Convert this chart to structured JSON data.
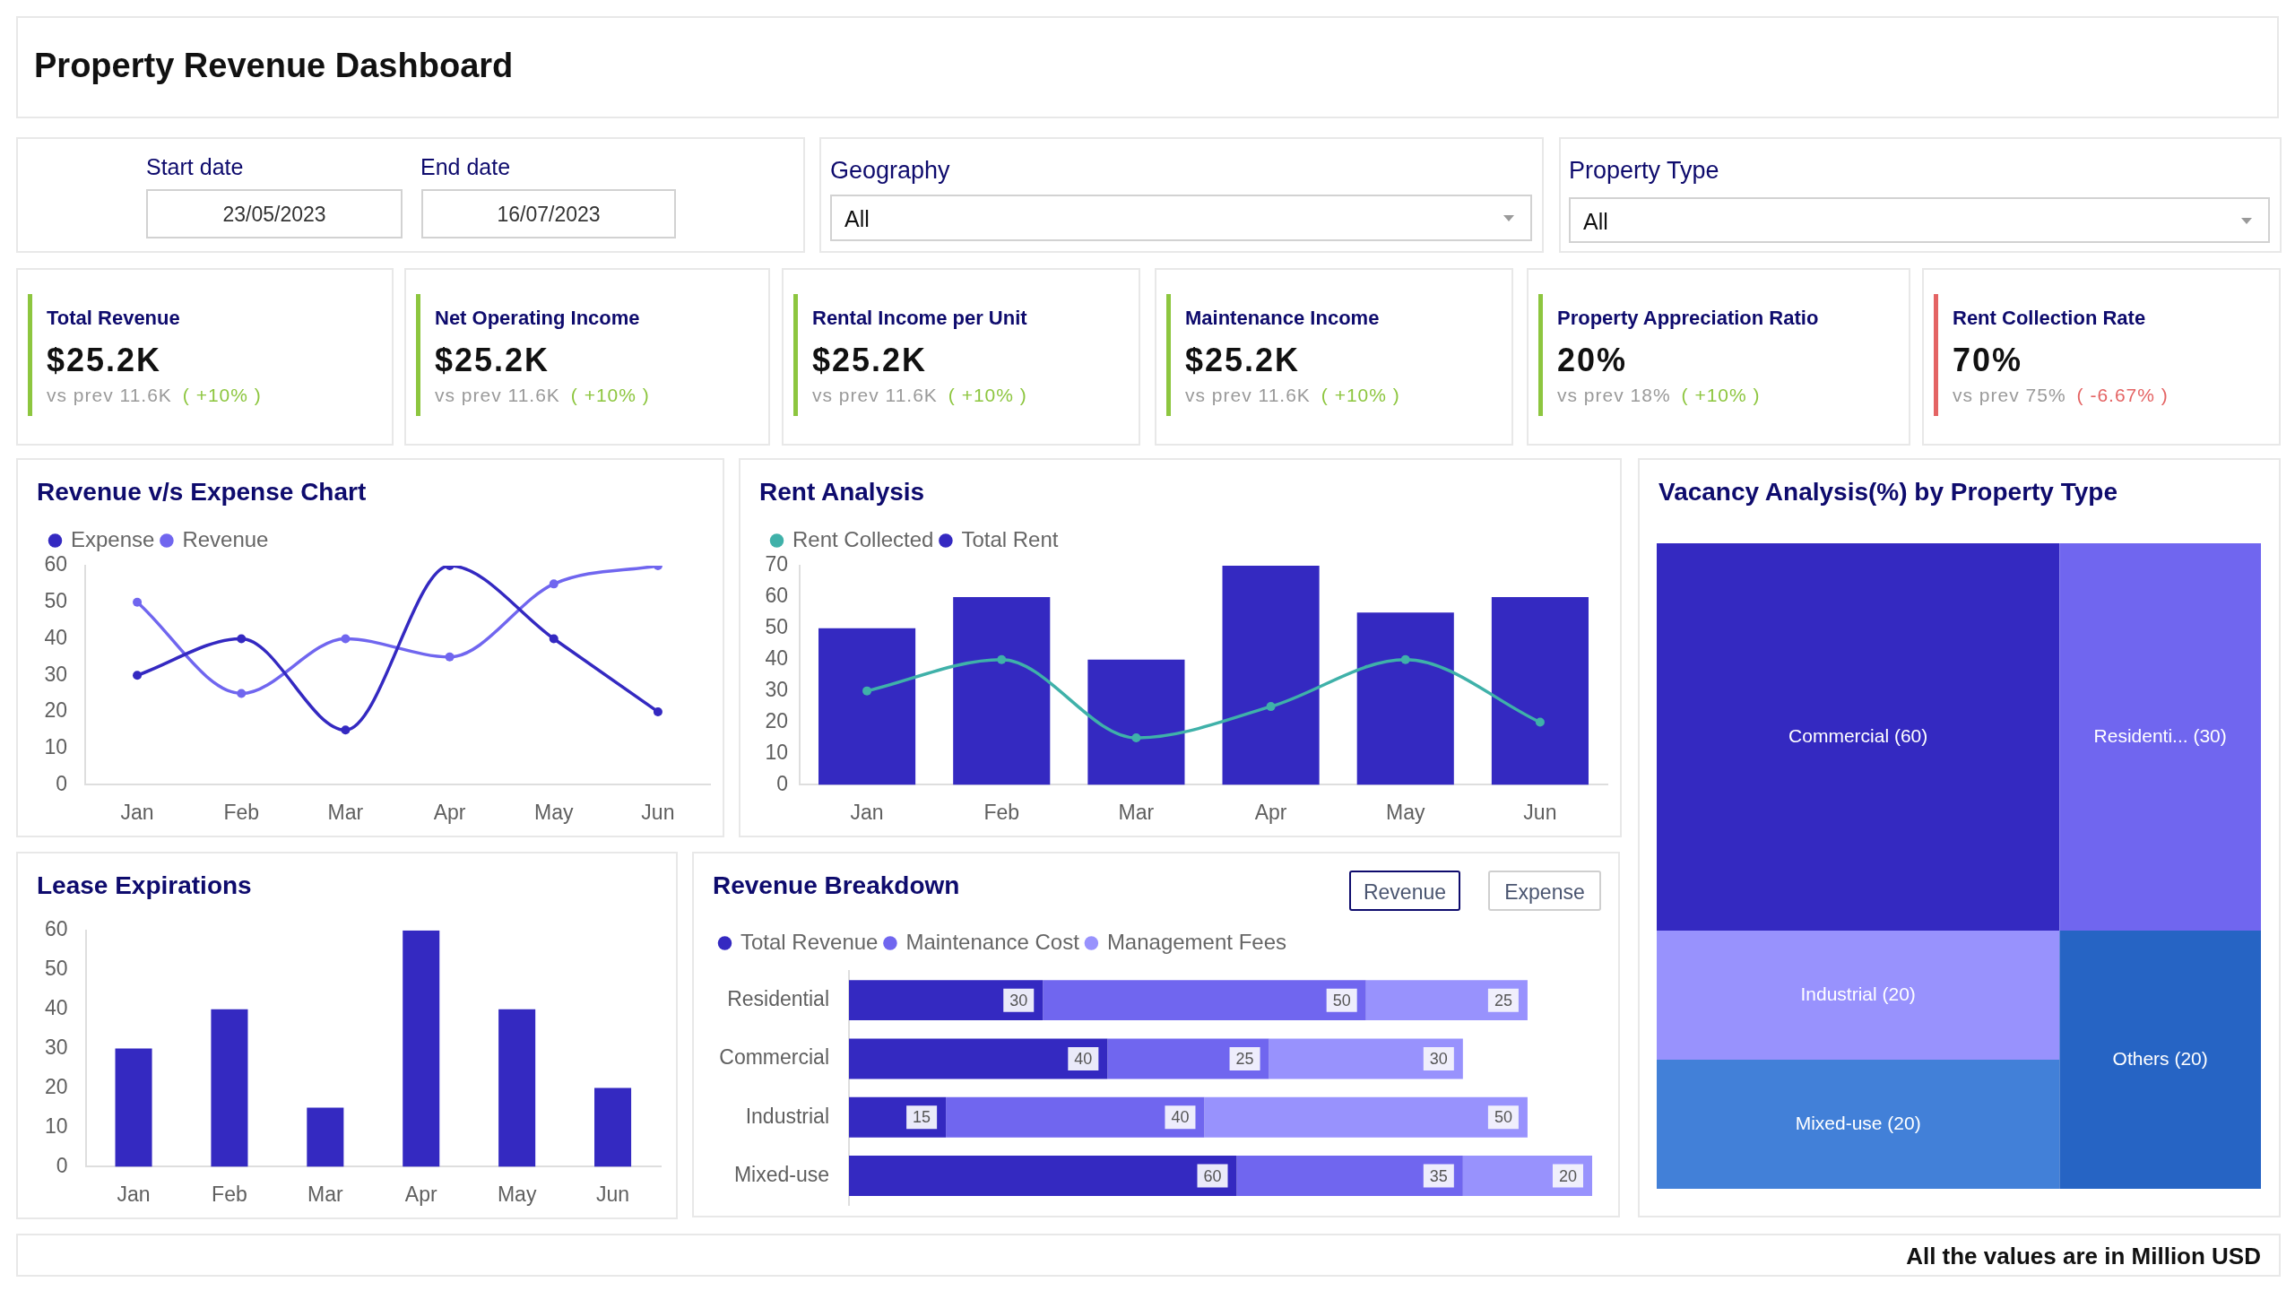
{
  "chart_data": [
    {
      "type": "other",
      "title": "Property Revenue Dashboard",
      "annotations": [
        "Start date",
        "23/05/2023",
        "End date",
        "16/07/2023",
        "Geography",
        "All",
        "Property Type",
        "All"
      ]
    },
    {
      "type": "other",
      "title": "Total Revenue",
      "color": "#8dc63f",
      "annotations": [
        "$25.2K",
        "vs prev 11.6K",
        "( +10% )"
      ]
    },
    {
      "type": "other",
      "title": "Net Operating Income",
      "color": "#8dc63f",
      "annotations": [
        "$25.2K",
        "vs prev 11.6K",
        "( +10% )"
      ]
    },
    {
      "type": "other",
      "title": "Rental Income per Unit",
      "color": "#8dc63f",
      "annotations": [
        "$25.2K",
        "vs prev 11.6K",
        "( +10% )"
      ]
    },
    {
      "type": "other",
      "title": "Maintenance Income",
      "color": "#8dc63f",
      "annotations": [
        "$25.2K",
        "vs prev 11.6K",
        "( +10% )"
      ]
    },
    {
      "type": "other",
      "title": "Property Appreciation Ratio",
      "color": "#8dc63f",
      "annotations": [
        "20%",
        "vs prev 18%",
        "( +10% )"
      ]
    },
    {
      "type": "other",
      "title": "Rent Collection Rate",
      "color": "#e46464",
      "annotations": [
        "70%",
        "vs prev 75%",
        "( -6.67% )"
      ]
    },
    {
      "type": "line",
      "title": "Revenue v/s Expense Chart",
      "categories": [
        "Jan",
        "Feb",
        "Mar",
        "Apr",
        "May",
        "Jun"
      ],
      "series": [
        {
          "name": "Expense",
          "color": "#3429c1",
          "values": [
            30,
            40,
            15,
            60,
            40,
            20
          ]
        },
        {
          "name": "Revenue",
          "color": "#7066ef",
          "values": [
            50,
            25,
            40,
            35,
            55,
            60
          ]
        }
      ],
      "ylim": [
        0,
        60
      ],
      "yticks": [
        0,
        10,
        20,
        30,
        40,
        50,
        60
      ],
      "legend": "top left",
      "marker": "circle"
    },
    {
      "type": "bar",
      "title": "Rent Analysis",
      "categories": [
        "Jan",
        "Feb",
        "Mar",
        "Apr",
        "May",
        "Jun"
      ],
      "series": [
        {
          "name": "Rent Collected",
          "type": "line",
          "color": "#3fb1a9",
          "values": [
            30,
            40,
            15,
            25,
            40,
            20
          ]
        },
        {
          "name": "Total Rent",
          "type": "bar",
          "color": "#3429c1",
          "values": [
            50,
            60,
            40,
            70,
            55,
            60
          ]
        }
      ],
      "ylim": [
        0,
        70
      ],
      "yticks": [
        0,
        10,
        20,
        30,
        40,
        50,
        60,
        70
      ],
      "legend": "top left",
      "marker": "circle"
    },
    {
      "type": "other",
      "title": "Vacancy Analysis(%) by Property Type",
      "categories": [
        "Commercial",
        "Residenti...",
        "Industrial",
        "Mixed-use",
        "Others"
      ],
      "values": [
        60,
        30,
        20,
        20,
        20
      ],
      "value_labels": [
        "(60)",
        "(30)",
        "(20)",
        "(20)",
        "(20)"
      ],
      "colors": [
        "#3429c1",
        "#7066ef",
        "#9892fd",
        "#4280d8",
        "#2664c4"
      ]
    },
    {
      "type": "bar",
      "title": "Lease Expirations",
      "categories": [
        "Jan",
        "Feb",
        "Mar",
        "Apr",
        "May",
        "Jun"
      ],
      "values": [
        30,
        40,
        15,
        60,
        40,
        20
      ],
      "color": "#3429c1",
      "ylim": [
        0,
        60
      ],
      "yticks": [
        0,
        10,
        20,
        30,
        40,
        50,
        60
      ]
    },
    {
      "type": "bar",
      "title": "Revenue Breakdown",
      "orientation": "horizontal",
      "stacked": true,
      "categories": [
        "Residential",
        "Commercial",
        "Industrial",
        "Mixed-use"
      ],
      "series": [
        {
          "name": "Total Revenue",
          "color": "#3429c1",
          "values": [
            30,
            40,
            15,
            60
          ]
        },
        {
          "name": "Maintenance Cost",
          "color": "#7066ef",
          "values": [
            50,
            25,
            40,
            35
          ]
        },
        {
          "name": "Management Fees",
          "color": "#9892fd",
          "values": [
            25,
            30,
            50,
            20
          ]
        }
      ],
      "xlim": [
        0,
        115
      ],
      "tick_labels": "y",
      "data_labels": true,
      "legend": "top left",
      "annotations": [
        "Revenue",
        "Expense"
      ]
    },
    {
      "type": "other",
      "annotations": [
        "All the values are in Million USD"
      ]
    }
  ]
}
